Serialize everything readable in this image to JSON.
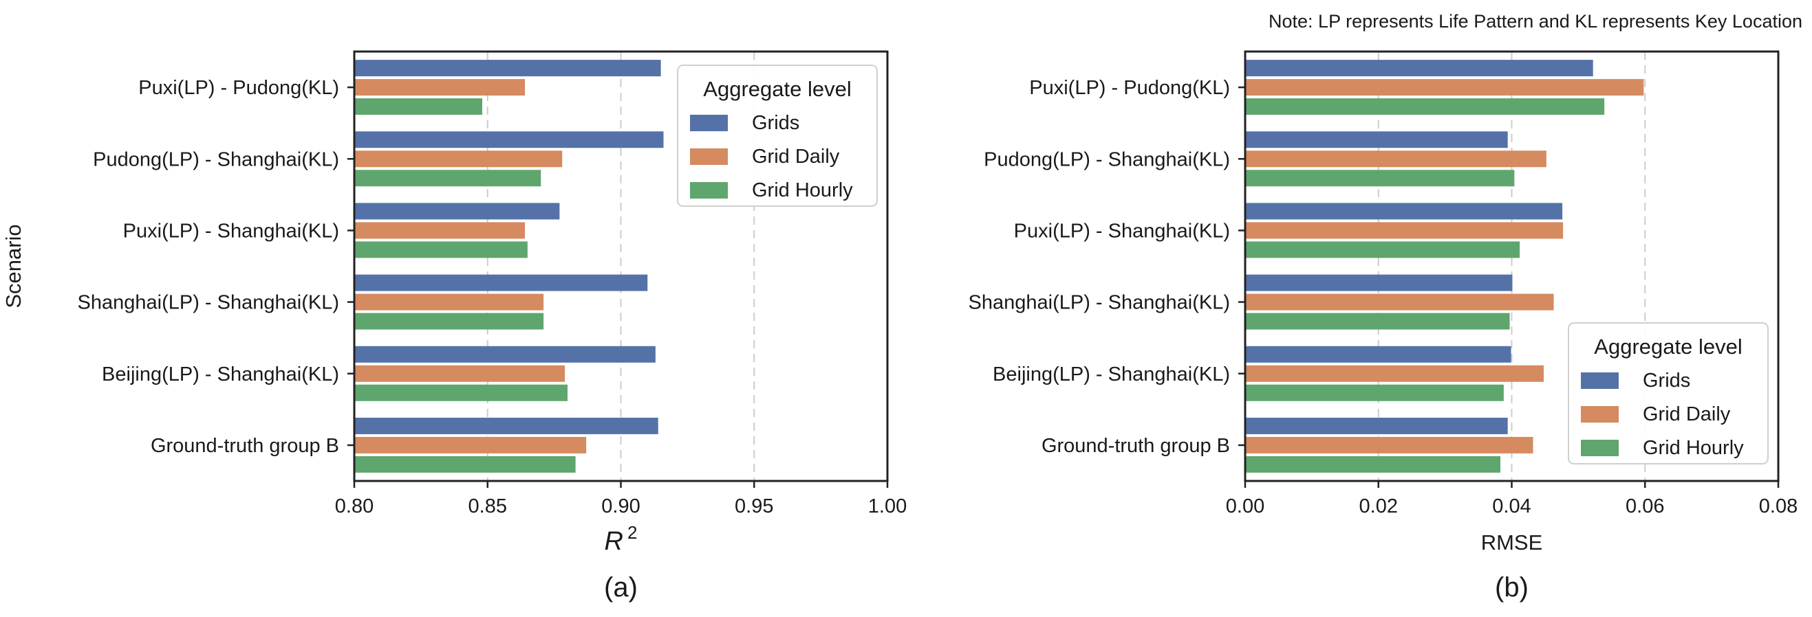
{
  "note": "Note: LP represents Life Pattern and KL represents Key Location",
  "colors": {
    "Grids": "#5572a8",
    "Grid Daily": "#d58a5f",
    "Grid Hourly": "#5ea66d"
  },
  "chart_data": [
    {
      "type": "bar",
      "orientation": "horizontal",
      "panel_label": "(a)",
      "ylabel": "Scenario",
      "xlabel": "R",
      "xlabel_superscript": "2",
      "xlim": [
        0.8,
        1.0
      ],
      "xticks": [
        "0.80",
        "0.85",
        "0.90",
        "0.95",
        "1.00"
      ],
      "grid": "vertical dashed",
      "legend": {
        "title": "Aggregate level",
        "placement": "top-right"
      },
      "categories": [
        "Puxi(LP) - Pudong(KL)",
        "Pudong(LP) - Shanghai(KL)",
        "Puxi(LP) - Shanghai(KL)",
        "Shanghai(LP) - Shanghai(KL)",
        "Beijing(LP) - Shanghai(KL)",
        "Ground-truth group B"
      ],
      "series": [
        {
          "name": "Grids",
          "values": [
            0.915,
            0.916,
            0.877,
            0.91,
            0.913,
            0.914
          ]
        },
        {
          "name": "Grid Daily",
          "values": [
            0.864,
            0.878,
            0.864,
            0.871,
            0.879,
            0.887
          ]
        },
        {
          "name": "Grid Hourly",
          "values": [
            0.848,
            0.87,
            0.865,
            0.871,
            0.88,
            0.883
          ]
        }
      ]
    },
    {
      "type": "bar",
      "orientation": "horizontal",
      "panel_label": "(b)",
      "ylabel": "",
      "xlabel": "RMSE",
      "xlim": [
        0.0,
        0.08
      ],
      "xticks": [
        "0.00",
        "0.02",
        "0.04",
        "0.06",
        "0.08"
      ],
      "grid": "vertical dashed",
      "legend": {
        "title": "Aggregate level",
        "placement": "bottom-right"
      },
      "categories": [
        "Puxi(LP) - Pudong(KL)",
        "Pudong(LP) - Shanghai(KL)",
        "Puxi(LP) - Shanghai(KL)",
        "Shanghai(LP) - Shanghai(KL)",
        "Beijing(LP) - Shanghai(KL)",
        "Ground-truth group B"
      ],
      "series": [
        {
          "name": "Grids",
          "values": [
            0.0522,
            0.0394,
            0.0476,
            0.0401,
            0.0399,
            0.0394
          ]
        },
        {
          "name": "Grid Daily",
          "values": [
            0.0598,
            0.0452,
            0.0477,
            0.0463,
            0.0448,
            0.0432
          ]
        },
        {
          "name": "Grid Hourly",
          "values": [
            0.0539,
            0.0404,
            0.0412,
            0.0397,
            0.0388,
            0.0383
          ]
        }
      ]
    }
  ]
}
